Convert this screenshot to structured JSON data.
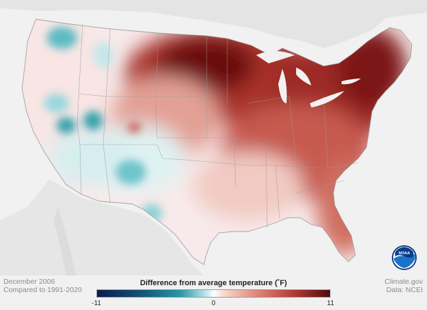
{
  "map": {
    "title": "December 2006",
    "subtitle": "Compared to 1991-2020",
    "source_1": "Climate.gov",
    "source_2": "Data: NCEI",
    "logo_text": "NOAA"
  },
  "legend": {
    "title": "Difference from average temperature (˚F)",
    "min": "-11",
    "mid": "0",
    "max": "11",
    "colors": {
      "cold_extreme": "#0b1a4f",
      "cold": "#2a9aa6",
      "neutral": "#ffffff",
      "warm": "#dc7f70",
      "warm_extreme": "#4e0a0a"
    }
  }
}
